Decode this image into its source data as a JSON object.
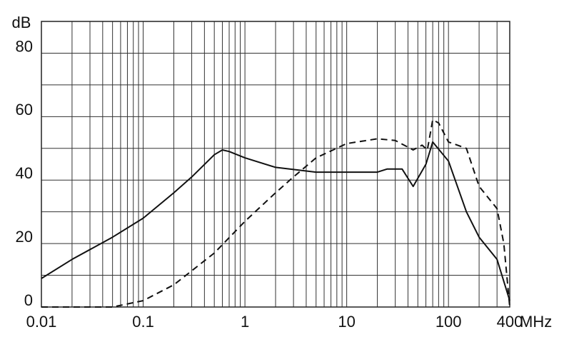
{
  "chart_data": {
    "type": "line",
    "y_label": "dB",
    "x_label": "MHz",
    "log_x": true,
    "grid": true,
    "xlim": [
      0.01,
      400
    ],
    "ylim": [
      0,
      90
    ],
    "xticks": [
      0.01,
      0.1,
      1,
      10,
      100,
      400
    ],
    "xminorticks": [
      0.02,
      0.03,
      0.04,
      0.05,
      0.06,
      0.07,
      0.08,
      0.09,
      0.2,
      0.3,
      0.4,
      0.5,
      0.6,
      0.7,
      0.8,
      0.9,
      2,
      3,
      4,
      5,
      6,
      7,
      8,
      9,
      20,
      30,
      40,
      50,
      60,
      70,
      80,
      90,
      200,
      300
    ],
    "yticks": [
      0,
      20,
      40,
      60,
      80
    ],
    "yminorticks": [
      10,
      30,
      50,
      70,
      90
    ],
    "series": [
      {
        "color": "#111111",
        "linestyle": "solid",
        "x": [
          0.01,
          0.02,
          0.05,
          0.1,
          0.2,
          0.3,
          0.5,
          0.6,
          0.7,
          1,
          2,
          5,
          10,
          20,
          25,
          35,
          45,
          60,
          70,
          100,
          150,
          200,
          300,
          400
        ],
        "values": [
          9,
          15,
          22,
          28,
          36,
          41,
          48,
          49.5,
          49,
          47,
          44,
          42.5,
          42.5,
          42.5,
          43.5,
          43.5,
          38,
          45,
          52,
          46,
          30,
          22,
          15,
          2
        ]
      },
      {
        "color": "#111111",
        "linestyle": "dashed",
        "x": [
          0.01,
          0.05,
          0.1,
          0.2,
          0.5,
          1,
          2,
          3,
          5,
          10,
          20,
          30,
          45,
          55,
          62,
          70,
          80,
          100,
          150,
          200,
          300,
          350,
          400
        ],
        "values": [
          0,
          0,
          2,
          7,
          17,
          27,
          36,
          41,
          47,
          51.5,
          53,
          52.5,
          49.5,
          51,
          49.5,
          59,
          58,
          52,
          50,
          38,
          31,
          20,
          0
        ]
      }
    ]
  }
}
